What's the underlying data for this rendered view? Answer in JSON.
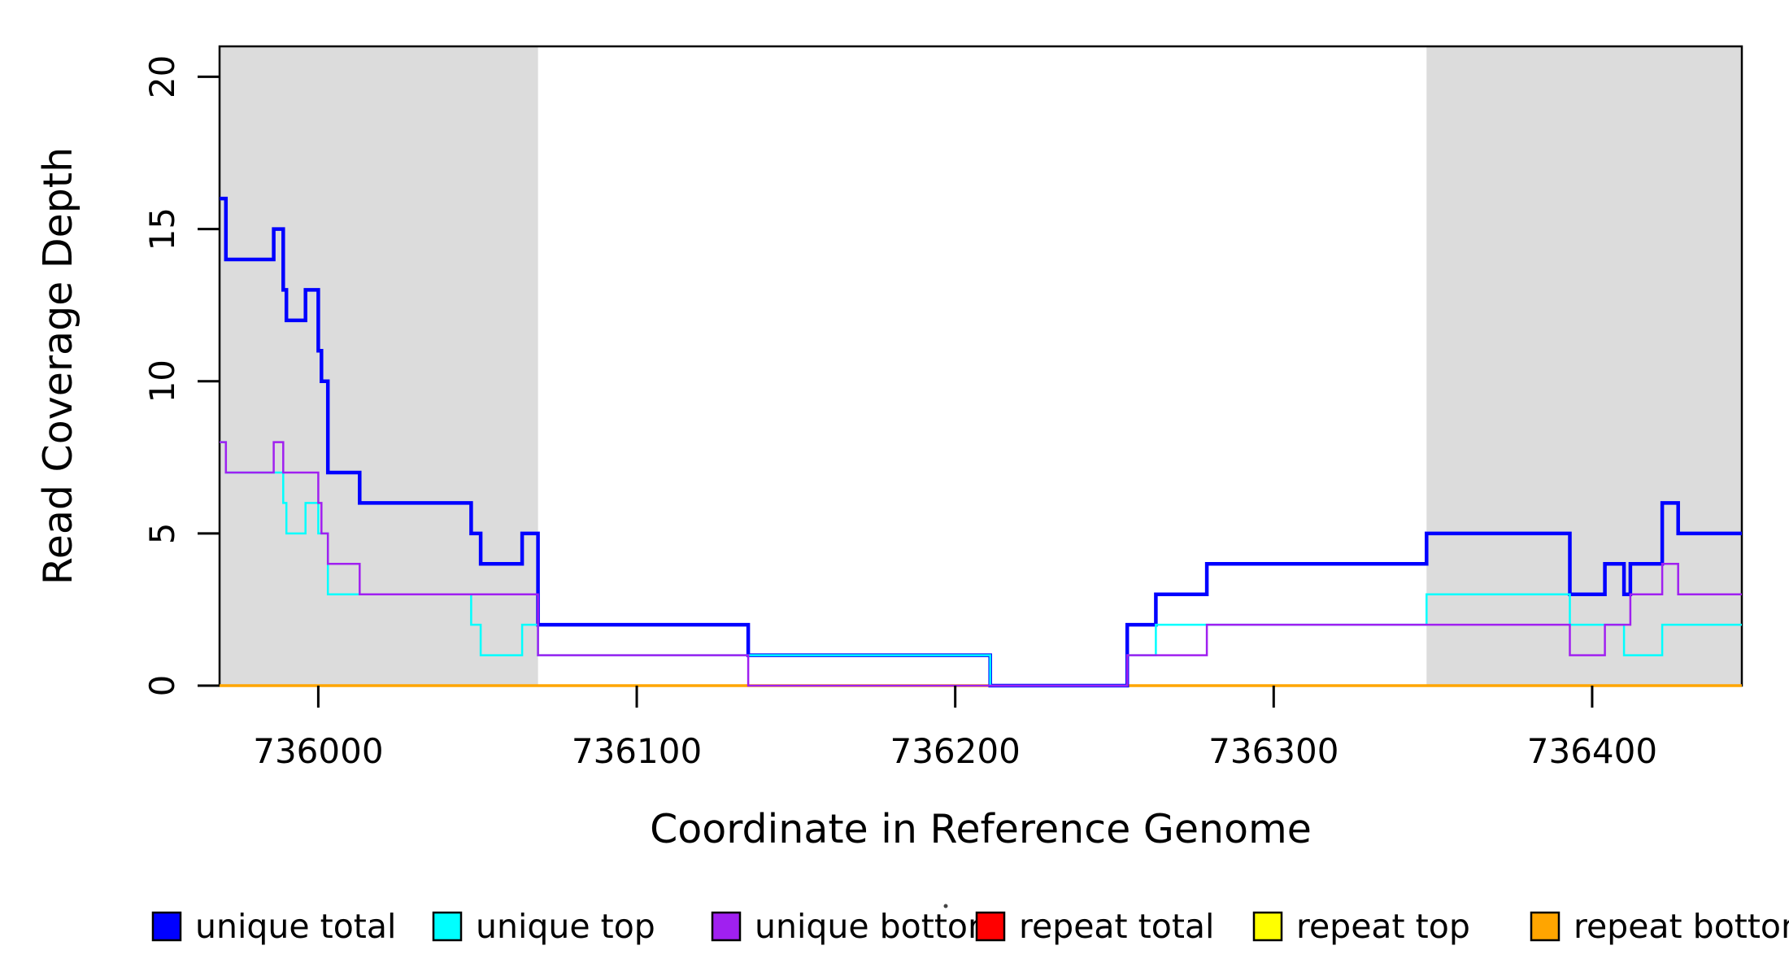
{
  "chart_data": {
    "type": "line",
    "subtype": "step",
    "title": "",
    "xlabel": "Coordinate in Reference Genome",
    "ylabel": "Read Coverage Depth",
    "xlim": [
      735969,
      736447
    ],
    "ylim": [
      0,
      21
    ],
    "x_ticks": [
      "736000",
      "736100",
      "736200",
      "736300",
      "736400"
    ],
    "x_tick_values": [
      736000,
      736100,
      736200,
      736300,
      736400
    ],
    "y_ticks": [
      "0",
      "5",
      "10",
      "15",
      "20"
    ],
    "y_tick_values": [
      0,
      5,
      10,
      15,
      20
    ],
    "grid": false,
    "legend_position": "bottom",
    "background_color": "#ffffff",
    "shaded_region_color": "#DCDCDC",
    "shaded_regions": [
      {
        "name": "left-gray-region",
        "x0": 735969,
        "x1": 736069
      },
      {
        "name": "right-gray-region",
        "x0": 736348,
        "x1": 736447
      }
    ],
    "series": [
      {
        "name": "repeat total",
        "color": "#FF0000",
        "line_width": 2.5,
        "steps": [
          [
            735969,
            0
          ]
        ]
      },
      {
        "name": "repeat top",
        "color": "#FFFF00",
        "line_width": 2.5,
        "steps": [
          [
            735969,
            0
          ]
        ]
      },
      {
        "name": "repeat bottom",
        "color": "#FFA500",
        "line_width": 3.5,
        "steps": [
          [
            735969,
            0
          ]
        ]
      },
      {
        "name": "unique total",
        "color": "#0000FF",
        "line_width": 4.5,
        "steps": [
          [
            735969,
            16
          ],
          [
            735971,
            14
          ],
          [
            735986,
            15
          ],
          [
            735989,
            13
          ],
          [
            735990,
            12
          ],
          [
            735996,
            13
          ],
          [
            736000,
            11
          ],
          [
            736001,
            10
          ],
          [
            736003,
            7
          ],
          [
            736013,
            6
          ],
          [
            736048,
            5
          ],
          [
            736051,
            4
          ],
          [
            736064,
            5
          ],
          [
            736069,
            2
          ],
          [
            736135,
            1
          ],
          [
            736211,
            0
          ],
          [
            736254,
            2
          ],
          [
            736263,
            3
          ],
          [
            736279,
            4
          ],
          [
            736348,
            5
          ],
          [
            736393,
            3
          ],
          [
            736404,
            4
          ],
          [
            736410,
            3
          ],
          [
            736412,
            4
          ],
          [
            736422,
            6
          ],
          [
            736427,
            5
          ]
        ]
      },
      {
        "name": "unique top",
        "color": "#00FFFF",
        "line_width": 2.5,
        "steps": [
          [
            735969,
            8
          ],
          [
            735971,
            7
          ],
          [
            735989,
            6
          ],
          [
            735990,
            5
          ],
          [
            735996,
            6
          ],
          [
            736000,
            5
          ],
          [
            736003,
            3
          ],
          [
            736048,
            2
          ],
          [
            736051,
            1
          ],
          [
            736064,
            2
          ],
          [
            736069,
            1
          ],
          [
            736211,
            0
          ],
          [
            736254,
            1
          ],
          [
            736263,
            2
          ],
          [
            736348,
            3
          ],
          [
            736393,
            2
          ],
          [
            736410,
            1
          ],
          [
            736422,
            2
          ]
        ]
      },
      {
        "name": "unique bottom",
        "color": "#A020F0",
        "line_width": 2.5,
        "steps": [
          [
            735969,
            8
          ],
          [
            735971,
            7
          ],
          [
            735986,
            8
          ],
          [
            735989,
            7
          ],
          [
            736000,
            6
          ],
          [
            736001,
            5
          ],
          [
            736003,
            4
          ],
          [
            736013,
            3
          ],
          [
            736069,
            1
          ],
          [
            736135,
            0
          ],
          [
            736254,
            1
          ],
          [
            736279,
            2
          ],
          [
            736393,
            1
          ],
          [
            736404,
            2
          ],
          [
            736412,
            3
          ],
          [
            736422,
            4
          ],
          [
            736427,
            3
          ]
        ]
      }
    ],
    "legend": [
      {
        "label": "unique total",
        "color": "#0000FF"
      },
      {
        "label": "unique top",
        "color": "#00FFFF"
      },
      {
        "label": "unique bottom",
        "color": "#A020F0"
      },
      {
        "label": "repeat total",
        "color": "#FF0000"
      },
      {
        "label": "repeat top",
        "color": "#FFFF00"
      },
      {
        "label": "repeat bottom",
        "color": "#FFA500"
      }
    ]
  }
}
